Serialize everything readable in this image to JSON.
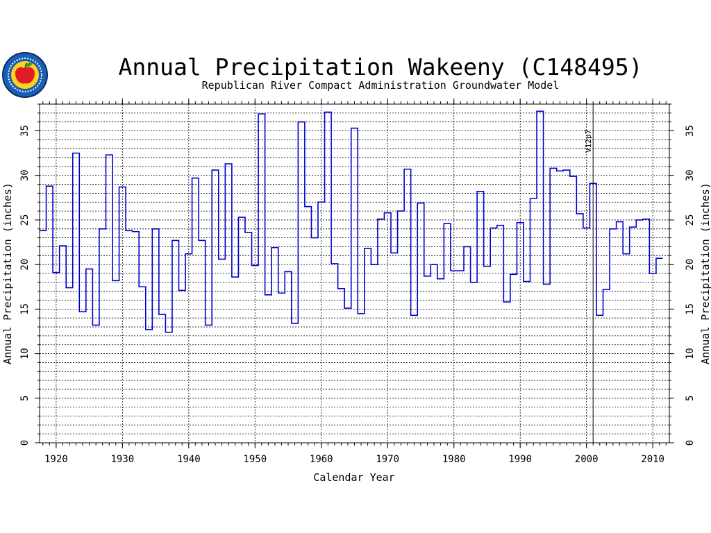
{
  "colors": {
    "line": "#0000cc",
    "grid": "#000000",
    "text": "#000000",
    "logo_ring": "#1a5fb4",
    "logo_inner": "#ffd21f",
    "apple": "#e01b24"
  },
  "logo": {
    "icon": "kansas-apple-seal-icon"
  },
  "chart_data": {
    "type": "line",
    "style": "step",
    "title": "Annual Precipitation Wakeeny (C148495)",
    "subtitle": "Republican River Compact Administration Groundwater Model",
    "xlabel": "Calendar Year",
    "ylabel": "Annual Precipitation (inches)",
    "xlim": [
      1917.5,
      2012.5
    ],
    "ylim": [
      0,
      38
    ],
    "xticks": [
      1920,
      1930,
      1940,
      1950,
      1960,
      1970,
      1980,
      1990,
      2000,
      2010
    ],
    "yticks": [
      0,
      5,
      10,
      15,
      20,
      25,
      30,
      35
    ],
    "grid": true,
    "annotation": {
      "text": "V12p7",
      "x": 2001
    },
    "x": [
      1918,
      1919,
      1920,
      1921,
      1922,
      1923,
      1924,
      1925,
      1926,
      1927,
      1928,
      1929,
      1930,
      1931,
      1932,
      1933,
      1934,
      1935,
      1936,
      1937,
      1938,
      1939,
      1940,
      1941,
      1942,
      1943,
      1944,
      1945,
      1946,
      1947,
      1948,
      1949,
      1950,
      1951,
      1952,
      1953,
      1954,
      1955,
      1956,
      1957,
      1958,
      1959,
      1960,
      1961,
      1962,
      1963,
      1964,
      1965,
      1966,
      1967,
      1968,
      1969,
      1970,
      1971,
      1972,
      1973,
      1974,
      1975,
      1976,
      1977,
      1978,
      1979,
      1980,
      1981,
      1982,
      1983,
      1984,
      1985,
      1986,
      1987,
      1988,
      1989,
      1990,
      1991,
      1992,
      1993,
      1994,
      1995,
      1996,
      1997,
      1998,
      1999,
      2000,
      2001,
      2002,
      2003,
      2004,
      2005,
      2006,
      2007,
      2008,
      2009,
      2010,
      2011
    ],
    "y": [
      23.8,
      28.8,
      19.1,
      22.1,
      17.4,
      32.5,
      14.7,
      19.5,
      13.2,
      24.0,
      32.3,
      18.2,
      28.7,
      23.8,
      23.7,
      17.5,
      12.7,
      24.0,
      14.4,
      12.4,
      22.7,
      17.1,
      21.2,
      29.7,
      22.7,
      13.2,
      30.6,
      20.6,
      31.3,
      18.6,
      25.3,
      23.6,
      19.9,
      36.9,
      16.6,
      21.9,
      16.8,
      19.2,
      13.4,
      36.0,
      26.5,
      23.0,
      27.0,
      37.1,
      20.1,
      17.3,
      15.1,
      35.3,
      14.5,
      21.8,
      20.0,
      25.1,
      25.8,
      21.3,
      26.0,
      30.7,
      14.3,
      26.9,
      18.7,
      20.0,
      18.4,
      24.6,
      19.3,
      19.3,
      22.0,
      18.0,
      28.2,
      19.8,
      24.1,
      24.4,
      15.8,
      18.9,
      24.7,
      18.1,
      27.4,
      37.2,
      17.8,
      30.8,
      30.5,
      30.6,
      29.9,
      25.7,
      24.1,
      29.1,
      14.3,
      17.2,
      24.0,
      24.8,
      21.2,
      24.2,
      25.0,
      25.1,
      19.0,
      20.7
    ]
  }
}
